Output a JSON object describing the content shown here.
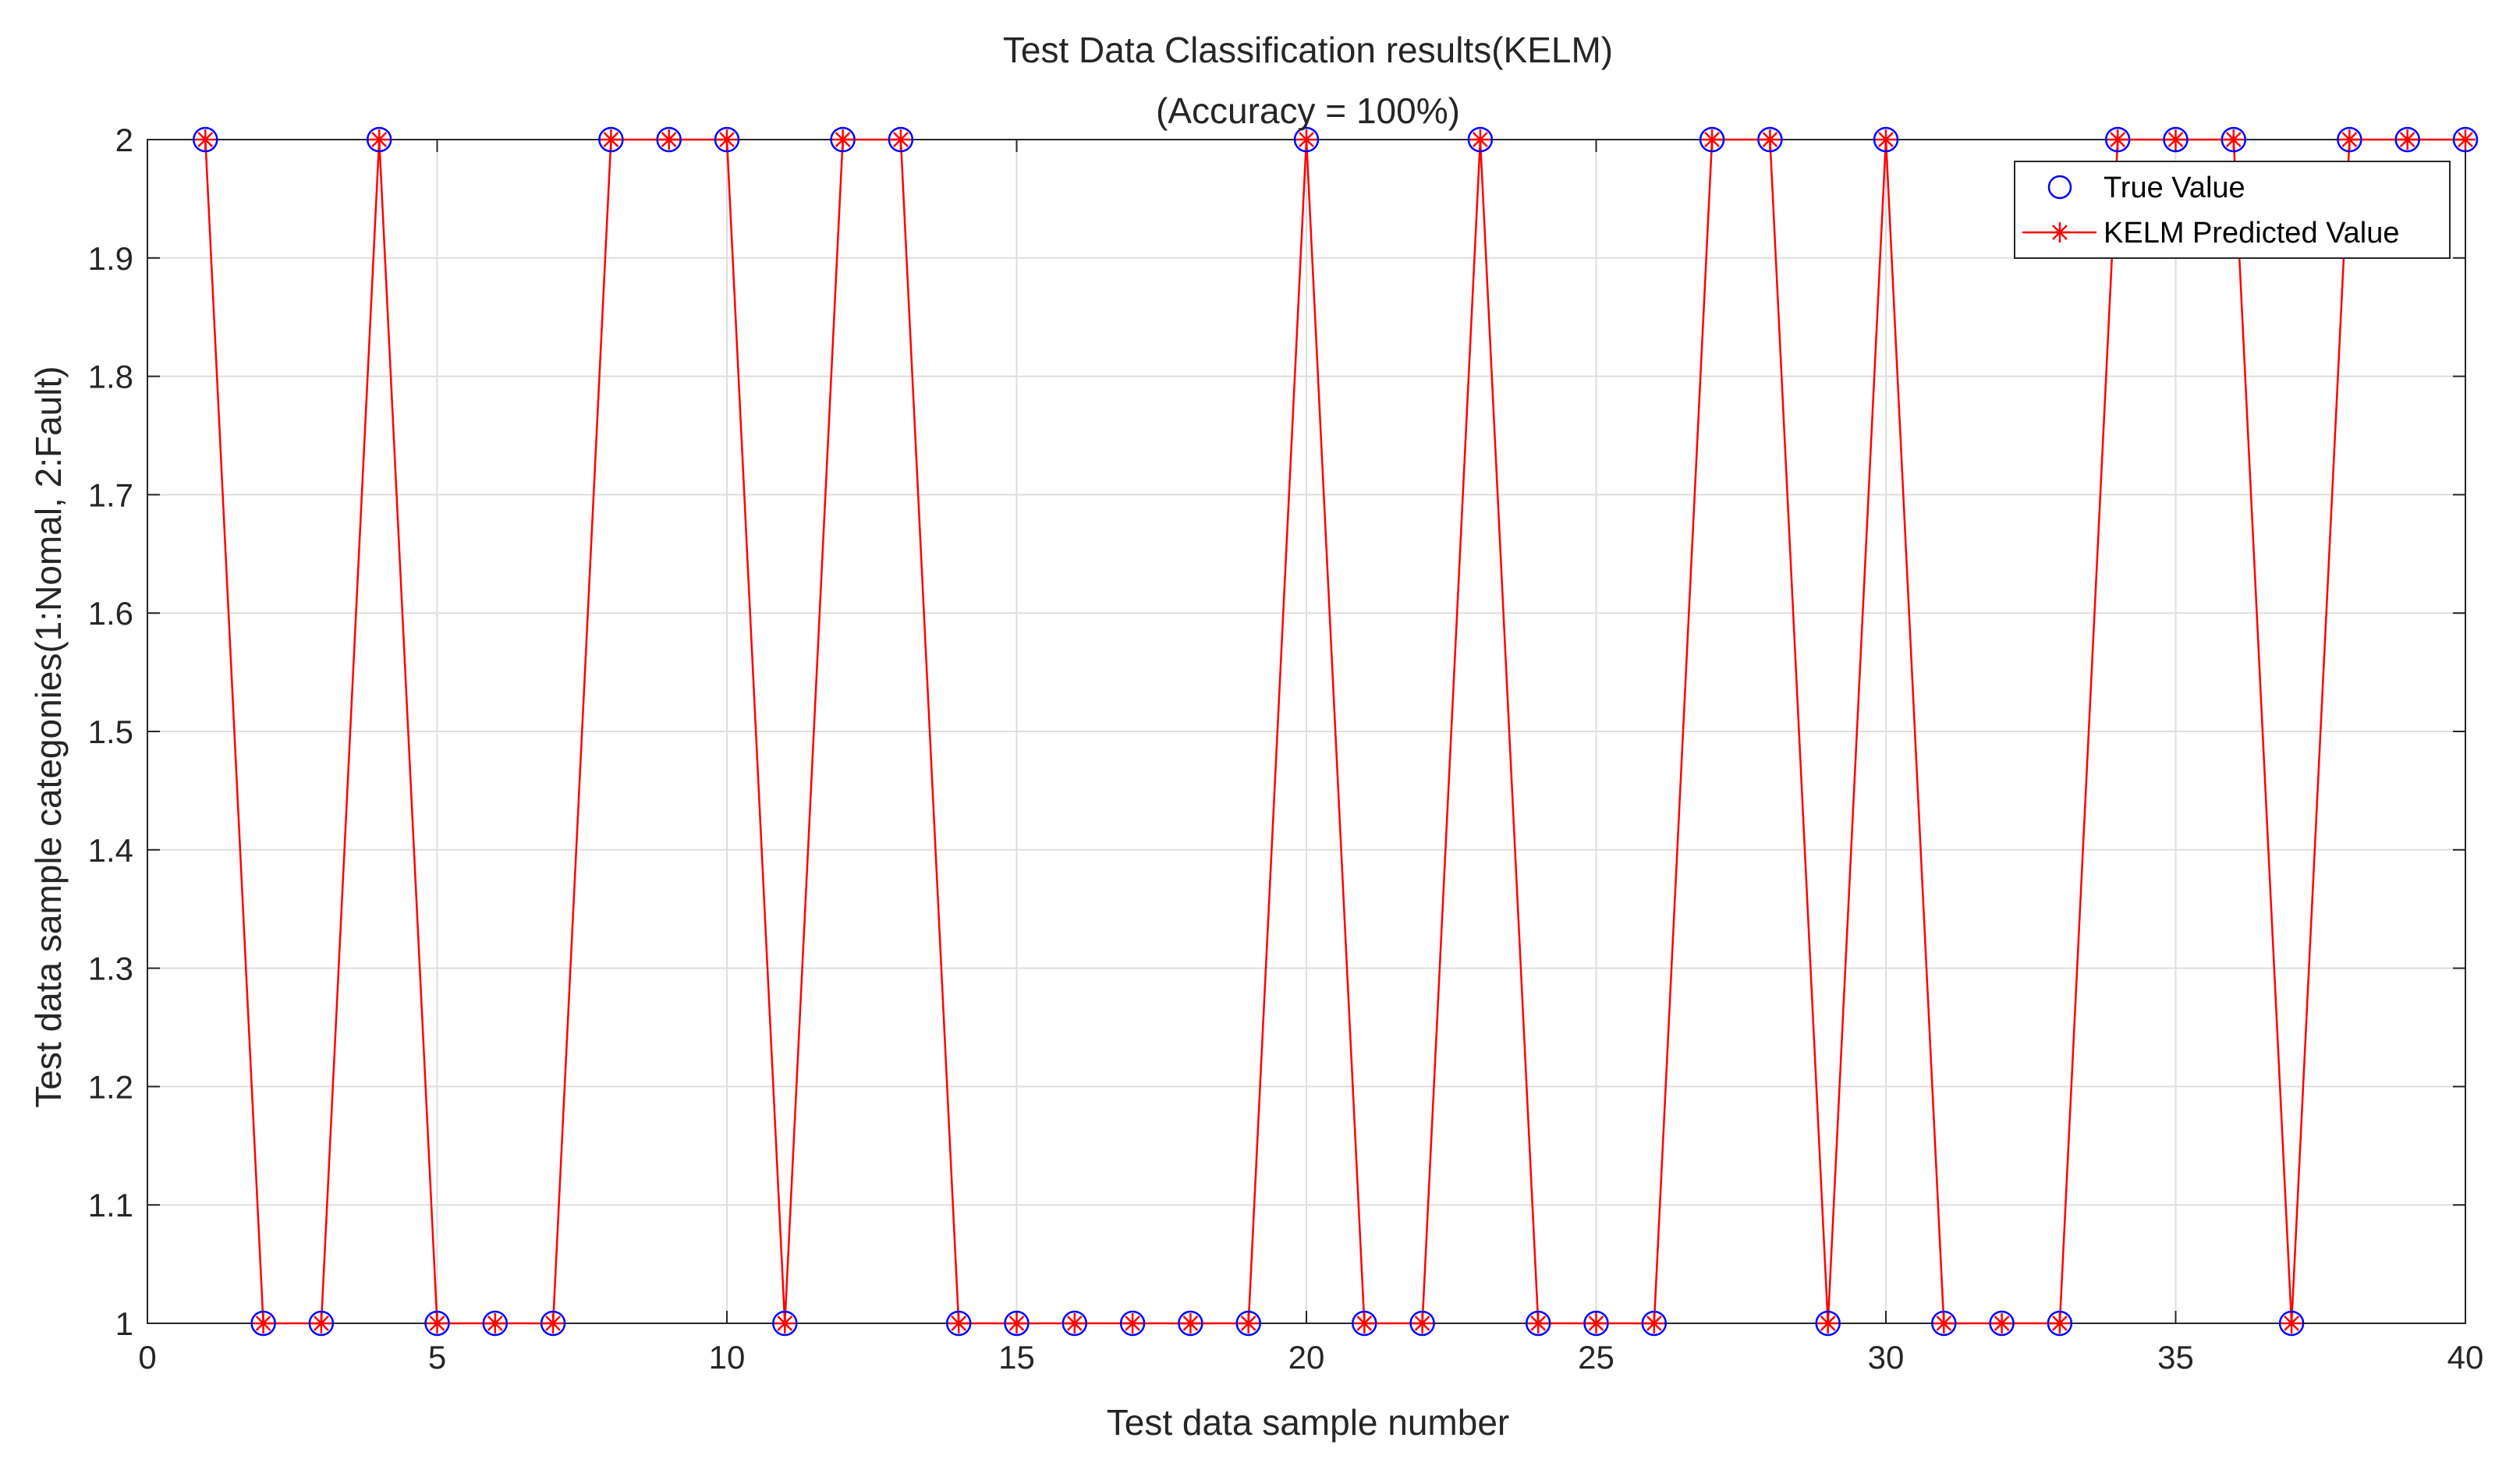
{
  "chart_data": {
    "type": "line",
    "title": "Test Data Classification results(KELM)",
    "subtitle": "(Accuracy = 100%)",
    "xlabel": "Test data sample number",
    "ylabel": "Test data sample categonies(1:Nomal, 2:Fault)",
    "xlim": [
      0,
      40
    ],
    "ylim": [
      1,
      2
    ],
    "xticks": [
      0,
      5,
      10,
      15,
      20,
      25,
      30,
      35,
      40
    ],
    "yticks": [
      1,
      1.1,
      1.2,
      1.3,
      1.4,
      1.5,
      1.6,
      1.7,
      1.8,
      1.9,
      2
    ],
    "xtick_labels": [
      "0",
      "5",
      "10",
      "15",
      "20",
      "25",
      "30",
      "35",
      "40"
    ],
    "ytick_labels": [
      "1",
      "1.1",
      "1.2",
      "1.3",
      "1.4",
      "1.5",
      "1.6",
      "1.7",
      "1.8",
      "1.9",
      "2"
    ],
    "grid": true,
    "legend_position": "top-right",
    "x": [
      1,
      2,
      3,
      4,
      5,
      6,
      7,
      8,
      9,
      10,
      11,
      12,
      13,
      14,
      15,
      16,
      17,
      18,
      19,
      20,
      21,
      22,
      23,
      24,
      25,
      26,
      27,
      28,
      29,
      30,
      31,
      32,
      33,
      34,
      35,
      36,
      37,
      38,
      39,
      40
    ],
    "series": [
      {
        "name": "True Value",
        "marker": "circle",
        "line": false,
        "color": "#0000ff",
        "values": [
          2,
          1,
          1,
          2,
          1,
          1,
          1,
          2,
          2,
          2,
          1,
          2,
          2,
          1,
          1,
          1,
          1,
          1,
          1,
          2,
          1,
          1,
          2,
          1,
          1,
          1,
          2,
          2,
          1,
          2,
          1,
          1,
          1,
          2,
          2,
          2,
          1,
          2,
          2,
          2
        ]
      },
      {
        "name": "KELM Predicted Value",
        "marker": "asterisk",
        "line": true,
        "color": "#ff0000",
        "values": [
          2,
          1,
          1,
          2,
          1,
          1,
          1,
          2,
          2,
          2,
          1,
          2,
          2,
          1,
          1,
          1,
          1,
          1,
          1,
          2,
          1,
          1,
          2,
          1,
          1,
          1,
          2,
          2,
          1,
          2,
          1,
          1,
          1,
          2,
          2,
          2,
          1,
          2,
          2,
          2
        ]
      }
    ]
  }
}
